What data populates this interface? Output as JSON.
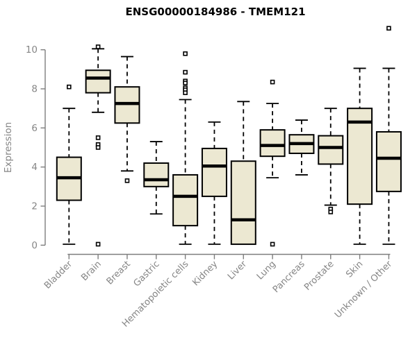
{
  "title": "ENSG00000184986 - TMEM121",
  "colors": {
    "background": "#ffffff",
    "box_fill": "#ece8d2",
    "box_stroke": "#000000",
    "median_stroke": "#000000",
    "whisker_stroke": "#000000",
    "outlier_fill": "#ffffff",
    "outlier_stroke": "#000000",
    "axis_stroke": "#7d7d7d",
    "axis_text": "#858585",
    "title_color": "#000000"
  },
  "chart_data": {
    "type": "boxplot",
    "title": "ENSG00000184986 - TMEM121",
    "xlabel": "",
    "ylabel": "Expression",
    "ylim": [
      0,
      11.5
    ],
    "yticks": [
      0,
      2,
      4,
      6,
      8,
      10
    ],
    "grid": false,
    "legend": "none",
    "categories": [
      "Bladder",
      "Brain",
      "Breast",
      "Gastric",
      "Hematopoietic cells",
      "Kidney",
      "Liver",
      "Lung",
      "Pancreas",
      "Prostate",
      "Skin",
      "Unknown / Other"
    ],
    "series": [
      {
        "name": "Bladder",
        "whisker_low": 0.05,
        "q1": 2.3,
        "median": 3.45,
        "q3": 4.5,
        "whisker_high": 7.0,
        "outliers": [
          8.1
        ]
      },
      {
        "name": "Brain",
        "whisker_low": 6.8,
        "q1": 7.8,
        "median": 8.55,
        "q3": 8.95,
        "whisker_high": 10.05,
        "outliers": [
          10.15,
          5.5,
          5.15,
          5.0,
          0.05
        ]
      },
      {
        "name": "Breast",
        "whisker_low": 3.8,
        "q1": 6.25,
        "median": 7.25,
        "q3": 8.1,
        "whisker_high": 9.65,
        "outliers": [
          3.3
        ]
      },
      {
        "name": "Gastric",
        "whisker_low": 1.6,
        "q1": 3.0,
        "median": 3.35,
        "q3": 4.2,
        "whisker_high": 5.3,
        "outliers": []
      },
      {
        "name": "Hematopoietic cells",
        "whisker_low": 0.05,
        "q1": 1.0,
        "median": 2.5,
        "q3": 3.6,
        "whisker_high": 7.45,
        "outliers": [
          9.8,
          8.85,
          8.4,
          8.3,
          8.05,
          7.95,
          7.8
        ]
      },
      {
        "name": "Kidney",
        "whisker_low": 0.05,
        "q1": 2.5,
        "median": 4.05,
        "q3": 4.95,
        "whisker_high": 6.3,
        "outliers": []
      },
      {
        "name": "Liver",
        "whisker_low": null,
        "q1": 0.05,
        "median": 1.3,
        "q3": 4.3,
        "whisker_high": 7.35,
        "outliers": []
      },
      {
        "name": "Lung",
        "whisker_low": 3.45,
        "q1": 4.55,
        "median": 5.1,
        "q3": 5.9,
        "whisker_high": 7.25,
        "outliers": [
          8.35,
          0.05
        ]
      },
      {
        "name": "Pancreas",
        "whisker_low": 3.6,
        "q1": 4.7,
        "median": 5.2,
        "q3": 5.65,
        "whisker_high": 6.4,
        "outliers": []
      },
      {
        "name": "Prostate",
        "whisker_low": 2.05,
        "q1": 4.15,
        "median": 5.0,
        "q3": 5.6,
        "whisker_high": 7.0,
        "outliers": [
          1.85,
          1.7
        ]
      },
      {
        "name": "Skin",
        "whisker_low": 0.05,
        "q1": 2.1,
        "median": 6.3,
        "q3": 7.0,
        "whisker_high": 9.05,
        "outliers": []
      },
      {
        "name": "Unknown / Other",
        "whisker_low": 0.05,
        "q1": 2.75,
        "median": 4.45,
        "q3": 5.8,
        "whisker_high": 9.05,
        "outliers": [
          11.1
        ]
      }
    ]
  }
}
